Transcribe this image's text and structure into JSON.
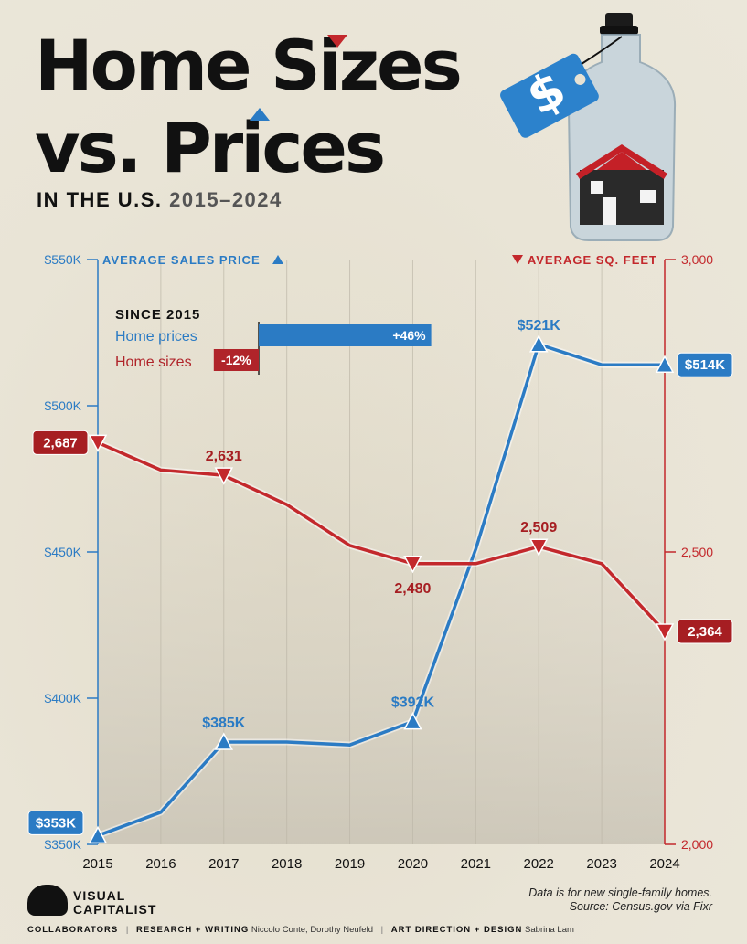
{
  "header": {
    "title_line1": "Home Sizes",
    "title_line2": "vs. Prices",
    "subtitle_prefix": "IN THE U.S.",
    "subtitle_years": "2015–2024"
  },
  "colors": {
    "price_blue": "#2b7bc4",
    "size_red": "#c3282c",
    "label_red": "#a61e22",
    "background": "#e7e2d3"
  },
  "inset": {
    "title": "SINCE 2015",
    "rows": [
      {
        "label": "Home prices",
        "value": "+46%"
      },
      {
        "label": "Home sizes",
        "value": "-12%"
      }
    ]
  },
  "chart_data": {
    "type": "line",
    "x": [
      2015,
      2016,
      2017,
      2018,
      2019,
      2020,
      2021,
      2022,
      2023,
      2024
    ],
    "left_axis_title": "AVERAGE SALES PRICE",
    "right_axis_title": "AVERAGE SQ. FEET",
    "left_ticks": [
      "$550K",
      "$500K",
      "$450K",
      "$400K",
      "$350K"
    ],
    "right_ticks": [
      "3,000",
      "2,500",
      "2,000"
    ],
    "left_ylim": [
      350,
      550
    ],
    "right_ylim": [
      2000,
      3000
    ],
    "grid": true,
    "series": [
      {
        "name": "Home prices",
        "axis": "left",
        "values": [
          353,
          361,
          385,
          385,
          384,
          392,
          451,
          521,
          514,
          514
        ],
        "labels": [
          {
            "i": 0,
            "text": "$353K",
            "style": "box"
          },
          {
            "i": 2,
            "text": "$385K",
            "style": "above"
          },
          {
            "i": 5,
            "text": "$392K",
            "style": "above"
          },
          {
            "i": 7,
            "text": "$521K",
            "style": "above"
          },
          {
            "i": 9,
            "text": "$514K",
            "style": "box"
          }
        ]
      },
      {
        "name": "Home sizes",
        "axis": "right",
        "values": [
          2687,
          2640,
          2631,
          2581,
          2511,
          2480,
          2480,
          2509,
          2480,
          2364
        ],
        "labels": [
          {
            "i": 0,
            "text": "2,687",
            "style": "box"
          },
          {
            "i": 2,
            "text": "2,631",
            "style": "above"
          },
          {
            "i": 5,
            "text": "2,480",
            "style": "below"
          },
          {
            "i": 7,
            "text": "2,509",
            "style": "above"
          },
          {
            "i": 9,
            "text": "2,364",
            "style": "box"
          }
        ]
      }
    ]
  },
  "footer": {
    "brand": [
      "VISUAL",
      "CAPITALIST"
    ],
    "note_line1": "Data is for new single-family homes.",
    "note_line2": "Source: Census.gov via Fixr",
    "collaborators": "COLLABORATORS",
    "research_label": "RESEARCH + WRITING",
    "research_names": "Niccolo Conte, Dorothy Neufeld",
    "design_label": "ART DIRECTION + DESIGN",
    "design_names": "Sabrina Lam"
  }
}
